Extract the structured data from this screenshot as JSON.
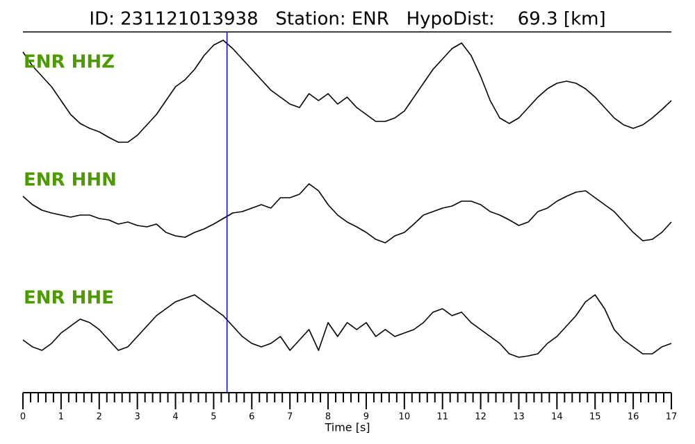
{
  "chart_data": {
    "type": "line",
    "title": "ID: 231121013938   Station: ENR   HypoDist:    69.3 [km]",
    "x_label": "Time [s]",
    "xlim": [
      0,
      17
    ],
    "xticks": [
      0,
      1,
      2,
      3,
      4,
      5,
      6,
      7,
      8,
      9,
      10,
      11,
      12,
      13,
      14,
      15,
      16,
      17
    ],
    "minor_ticks_per_interval": 5,
    "ylim": [
      -85,
      85
    ],
    "label_color": "#4c9a00",
    "pick_time": 5.35,
    "pick_color": "#0000ff",
    "x": [
      0,
      0.25,
      0.5,
      0.75,
      1,
      1.25,
      1.5,
      1.75,
      2,
      2.25,
      2.5,
      2.75,
      3,
      3.25,
      3.5,
      3.75,
      4,
      4.25,
      4.5,
      4.75,
      5,
      5.25,
      5.5,
      5.75,
      6,
      6.25,
      6.5,
      6.75,
      7,
      7.25,
      7.5,
      7.75,
      8,
      8.25,
      8.5,
      8.75,
      9,
      9.25,
      9.5,
      9.75,
      10,
      10.25,
      10.5,
      10.75,
      11,
      11.25,
      11.5,
      11.75,
      12,
      12.25,
      12.5,
      12.75,
      13,
      13.25,
      13.5,
      13.75,
      14,
      14.25,
      14.5,
      14.75,
      15,
      15.25,
      15.5,
      15.75,
      16,
      16.25,
      16.5,
      16.75,
      17
    ],
    "series": [
      {
        "name": "ENR HHZ",
        "color": "#000000",
        "values": [
          60,
          40,
          25,
          10,
          -10,
          -30,
          -43,
          -50,
          -55,
          -63,
          -70,
          -70,
          -60,
          -45,
          -30,
          -10,
          10,
          20,
          35,
          55,
          70,
          77,
          65,
          50,
          35,
          20,
          5,
          -5,
          -15,
          -20,
          0,
          -10,
          0,
          -15,
          -5,
          -20,
          -30,
          -40,
          -40,
          -35,
          -25,
          -5,
          15,
          35,
          50,
          65,
          73,
          55,
          25,
          -10,
          -35,
          -43,
          -35,
          -20,
          -5,
          7,
          15,
          18,
          15,
          7,
          -5,
          -20,
          -35,
          -45,
          -50,
          -45,
          -35,
          -23,
          -10
        ]
      },
      {
        "name": "ENR HHN",
        "color": "#000000",
        "values": [
          22,
          10,
          2,
          -2,
          -5,
          -8,
          -5,
          -5,
          -10,
          -12,
          -18,
          -15,
          -20,
          -22,
          -18,
          -30,
          -35,
          -37,
          -30,
          -25,
          -18,
          -10,
          -2,
          0,
          5,
          10,
          5,
          20,
          20,
          25,
          40,
          30,
          10,
          -5,
          -15,
          -22,
          -30,
          -40,
          -45,
          -35,
          -30,
          -18,
          -5,
          0,
          5,
          8,
          15,
          15,
          10,
          0,
          -5,
          -12,
          -20,
          -15,
          0,
          5,
          15,
          22,
          28,
          30,
          20,
          10,
          0,
          -15,
          -30,
          -42,
          -40,
          -30,
          -15
        ]
      },
      {
        "name": "ENR HHE",
        "color": "#000000",
        "values": [
          -15,
          -25,
          -30,
          -20,
          -5,
          5,
          15,
          10,
          0,
          -15,
          -30,
          -25,
          -10,
          5,
          20,
          30,
          40,
          45,
          50,
          40,
          30,
          20,
          5,
          -10,
          -20,
          -25,
          -20,
          -10,
          -30,
          -15,
          0,
          -30,
          10,
          -10,
          10,
          0,
          10,
          -10,
          0,
          -10,
          -5,
          0,
          10,
          25,
          30,
          20,
          25,
          10,
          0,
          -10,
          -20,
          -35,
          -40,
          -38,
          -35,
          -20,
          -10,
          5,
          20,
          40,
          50,
          30,
          0,
          -15,
          -25,
          -35,
          -35,
          -25,
          -20
        ]
      }
    ]
  }
}
